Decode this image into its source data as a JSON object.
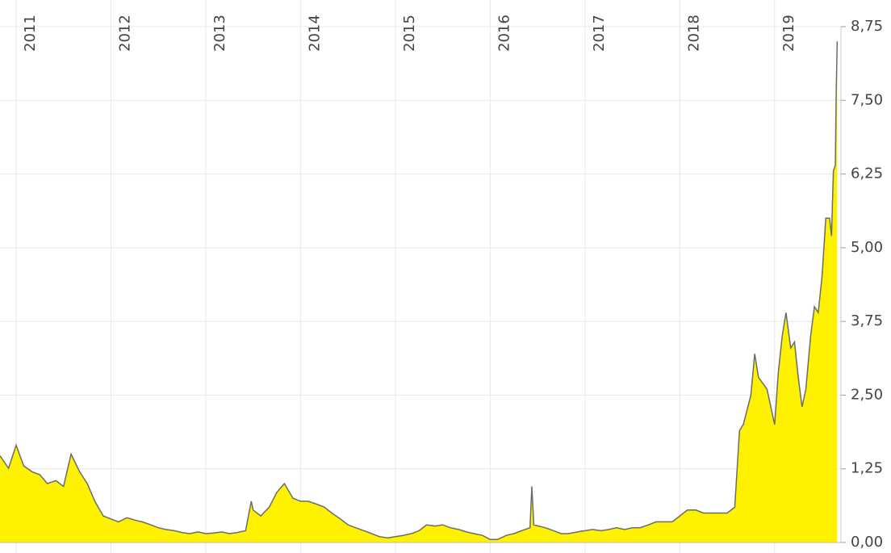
{
  "chart_data": {
    "type": "area",
    "x": [
      2010.83,
      2010.92,
      2011.0,
      2011.08,
      2011.17,
      2011.25,
      2011.33,
      2011.42,
      2011.5,
      2011.58,
      2011.67,
      2011.75,
      2011.83,
      2011.92,
      2012.0,
      2012.08,
      2012.17,
      2012.25,
      2012.33,
      2012.42,
      2012.5,
      2012.58,
      2012.67,
      2012.75,
      2012.83,
      2012.92,
      2013.0,
      2013.08,
      2013.17,
      2013.25,
      2013.33,
      2013.42,
      2013.48,
      2013.5,
      2013.58,
      2013.67,
      2013.75,
      2013.83,
      2013.92,
      2014.0,
      2014.08,
      2014.17,
      2014.25,
      2014.33,
      2014.42,
      2014.5,
      2014.58,
      2014.67,
      2014.75,
      2014.83,
      2014.92,
      2015.0,
      2015.08,
      2015.17,
      2015.25,
      2015.33,
      2015.42,
      2015.5,
      2015.58,
      2015.67,
      2015.75,
      2015.83,
      2015.92,
      2016.0,
      2016.08,
      2016.17,
      2016.25,
      2016.33,
      2016.42,
      2016.44,
      2016.46,
      2016.58,
      2016.67,
      2016.75,
      2016.83,
      2016.92,
      2017.0,
      2017.08,
      2017.17,
      2017.25,
      2017.33,
      2017.42,
      2017.5,
      2017.58,
      2017.67,
      2017.75,
      2017.83,
      2017.92,
      2018.0,
      2018.08,
      2018.17,
      2018.25,
      2018.33,
      2018.42,
      2018.5,
      2018.58,
      2018.63,
      2018.67,
      2018.75,
      2018.79,
      2018.83,
      2018.92,
      2019.0,
      2019.04,
      2019.08,
      2019.12,
      2019.17,
      2019.21,
      2019.25,
      2019.29,
      2019.33,
      2019.38,
      2019.42,
      2019.46,
      2019.5,
      2019.54,
      2019.58,
      2019.6,
      2019.62,
      2019.64,
      2019.65,
      2019.66
    ],
    "values": [
      1.47,
      1.26,
      1.65,
      1.3,
      1.2,
      1.15,
      1.0,
      1.05,
      0.95,
      1.5,
      1.2,
      1.0,
      0.7,
      0.45,
      0.4,
      0.35,
      0.42,
      0.38,
      0.35,
      0.3,
      0.25,
      0.22,
      0.2,
      0.17,
      0.15,
      0.18,
      0.15,
      0.16,
      0.18,
      0.15,
      0.17,
      0.2,
      0.7,
      0.55,
      0.45,
      0.6,
      0.85,
      1.0,
      0.75,
      0.7,
      0.7,
      0.65,
      0.6,
      0.5,
      0.4,
      0.3,
      0.25,
      0.2,
      0.15,
      0.1,
      0.08,
      0.1,
      0.12,
      0.15,
      0.2,
      0.3,
      0.28,
      0.3,
      0.25,
      0.22,
      0.18,
      0.15,
      0.12,
      0.05,
      0.05,
      0.12,
      0.15,
      0.2,
      0.25,
      0.95,
      0.3,
      0.25,
      0.2,
      0.15,
      0.15,
      0.18,
      0.2,
      0.22,
      0.2,
      0.22,
      0.25,
      0.22,
      0.25,
      0.25,
      0.3,
      0.35,
      0.35,
      0.35,
      0.45,
      0.55,
      0.55,
      0.5,
      0.5,
      0.5,
      0.5,
      0.6,
      1.9,
      2.0,
      2.5,
      3.2,
      2.8,
      2.6,
      2.0,
      2.9,
      3.5,
      3.9,
      3.3,
      3.4,
      2.8,
      2.3,
      2.6,
      3.5,
      4.0,
      3.9,
      4.5,
      5.5,
      5.5,
      5.2,
      6.3,
      6.4,
      7.6,
      8.5
    ],
    "color": "#fff200",
    "line_color": "#6b6b6b",
    "xlim": [
      2010.83,
      2019.7
    ],
    "xticks": [
      2011,
      2012,
      2013,
      2014,
      2015,
      2016,
      2017,
      2018,
      2019
    ],
    "ylim": [
      0,
      8.75
    ],
    "yticks": [
      {
        "value": 0,
        "label": "0,00"
      },
      {
        "value": 1.25,
        "label": "1,25"
      },
      {
        "value": 2.5,
        "label": "2,50"
      },
      {
        "value": 3.75,
        "label": "3,75"
      },
      {
        "value": 5,
        "label": "5,00"
      },
      {
        "value": 6.25,
        "label": "6,25"
      },
      {
        "value": 7.5,
        "label": "7,50"
      },
      {
        "value": 8.75,
        "label": "8,75"
      }
    ],
    "grid": true
  }
}
